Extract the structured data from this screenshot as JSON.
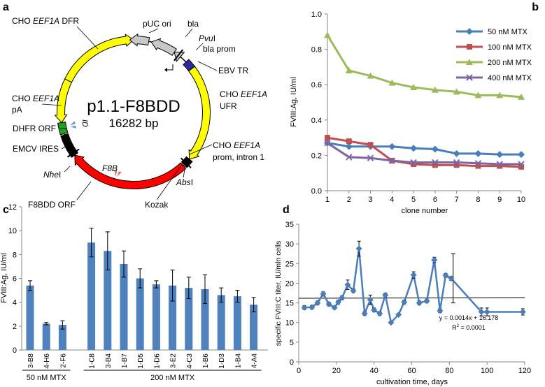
{
  "panels": [
    {
      "letter": "a",
      "chart_data": {
        "type": "plasmid-map",
        "title": "p1.1-F8BDD",
        "size_label": "16282 bp",
        "total_bp": 16282,
        "features": [
          {
            "name": "CHO EEF1A DFR",
            "color": "#ffff00",
            "start_deg": 296,
            "end_deg": 360,
            "direction": "cw"
          },
          {
            "name": "pUC ori",
            "color": "#c8c8c8",
            "start_deg": 357,
            "end_deg": 12,
            "direction": "ccw"
          },
          {
            "name": "bla",
            "color": "#c8c8c8",
            "start_deg": 14,
            "end_deg": 34,
            "direction": "ccw"
          },
          {
            "name": "bla prom",
            "color": "#c8c8c8",
            "start_deg": 34,
            "end_deg": 40,
            "direction": "ccw"
          },
          {
            "name": "EBV TR",
            "color": "#2a2aa0",
            "start_deg": 46,
            "end_deg": 53,
            "direction": "none"
          },
          {
            "name": "CHO EEF1A UFR",
            "color": "#ffff00",
            "start_deg": 53,
            "end_deg": 130,
            "direction": "cw"
          },
          {
            "name": "CHO EEF1A prom, intron 1",
            "color": "#000000",
            "start_deg": 130,
            "end_deg": 136,
            "direction": "none"
          },
          {
            "name": "F8BDD ORF",
            "color": "#ff0000",
            "start_deg": 137,
            "end_deg": 234,
            "direction": "cw"
          },
          {
            "name": "EMCV IRES",
            "color": "#000000",
            "start_deg": 234,
            "end_deg": 252,
            "direction": "none"
          },
          {
            "name": "DHFR ORF",
            "color": "#20a020",
            "start_deg": 253,
            "end_deg": 262,
            "direction": "none"
          },
          {
            "name": "CHO EEF1A pA",
            "color": "#ffff00",
            "start_deg": 262,
            "end_deg": 296,
            "direction": "ccw"
          }
        ],
        "sites": [
          {
            "name": "PvuI",
            "angle_deg": 38
          },
          {
            "name": "AbsI",
            "angle_deg": 134
          },
          {
            "name": "NheI",
            "angle_deg": 236
          }
        ],
        "primers": [
          {
            "name": "F8B",
            "angle_deg": 195
          },
          {
            "name": "ID",
            "angle_deg": 258
          }
        ],
        "labels": {
          "cho_dfr": [
            "CHO ",
            "EEF1A",
            " DFR"
          ],
          "puc_ori": "pUC ori",
          "bla": "bla",
          "pvui": [
            "Pvu",
            "I"
          ],
          "bla_prom": "bla prom",
          "ebv_tr": "EBV TR",
          "cho_ufr_1": [
            "CHO ",
            "EEF1A"
          ],
          "cho_ufr_2": "UFR",
          "cho_prom_1": [
            "CHO ",
            "EEF1A"
          ],
          "cho_prom_2": "prom, intron 1",
          "absi": [
            "Abs",
            "I"
          ],
          "kozak": "Kozak",
          "f8bdd_orf": "F8BDD ORF",
          "nhei": [
            "Nhe",
            "I"
          ],
          "f8b": "F8B",
          "emcv": "EMCV IRES",
          "dhfr": "DHFR ORF",
          "id": "ID",
          "cho_pa_1": [
            "CHO ",
            "EEF1A"
          ],
          "cho_pa_2": "pA"
        }
      }
    },
    {
      "letter": "b",
      "chart_data": {
        "type": "line",
        "xlabel": "clone number",
        "ylabel": "FVIII:Ag, IU/ml",
        "x": [
          1,
          2,
          3,
          4,
          5,
          6,
          7,
          8,
          9,
          10
        ],
        "xlim": [
          1,
          10
        ],
        "ylim": [
          0,
          1.0
        ],
        "yticks": [
          "0.0",
          "0.2",
          "0.4",
          "0.6",
          "0.8",
          "1.0"
        ],
        "series": [
          {
            "name": "50 nM MTX",
            "color": "#4a7ebb",
            "marker": "diamond",
            "values": [
              0.27,
              0.25,
              0.25,
              0.25,
              0.24,
              0.235,
              0.21,
              0.21,
              0.205,
              0.205
            ]
          },
          {
            "name": "100 nM MTX",
            "color": "#c0504d",
            "marker": "square",
            "values": [
              0.3,
              0.28,
              0.26,
              0.17,
              0.15,
              0.145,
              0.145,
              0.14,
              0.14,
              0.135
            ]
          },
          {
            "name": "200 nM MTX",
            "color": "#9bbb59",
            "marker": "triangle",
            "values": [
              0.88,
              0.68,
              0.65,
              0.61,
              0.585,
              0.57,
              0.56,
              0.54,
              0.54,
              0.53
            ]
          },
          {
            "name": "400 nM MTX",
            "color": "#8064a2",
            "marker": "x",
            "values": [
              0.27,
              0.19,
              0.185,
              0.17,
              0.16,
              0.16,
              0.16,
              0.155,
              0.15,
              0.15
            ]
          }
        ]
      }
    },
    {
      "letter": "c",
      "chart_data": {
        "type": "bar",
        "ylabel": "FVIII:Ag, IU/ml",
        "ylim": [
          0,
          12
        ],
        "yticks": [
          "0",
          "2",
          "4",
          "6",
          "8",
          "10",
          "12"
        ],
        "color": "#4f81bd",
        "categories": [
          "3-B8",
          "4-H6",
          "2-F6",
          "1-C8",
          "3-B4",
          "1-B7",
          "1-D5",
          "1-D6",
          "3-E2",
          "4-C3",
          "1-B6",
          "1-D3",
          "1-B4",
          "4-A4"
        ],
        "values": [
          5.4,
          2.2,
          2.1,
          9.0,
          8.3,
          7.2,
          6.0,
          5.5,
          5.4,
          5.2,
          5.1,
          4.6,
          4.5,
          3.8
        ],
        "errors": [
          0.4,
          0.1,
          0.35,
          1.2,
          1.6,
          1.1,
          0.8,
          0.3,
          1.3,
          0.9,
          1.2,
          0.6,
          0.5,
          0.6
        ],
        "groups": [
          {
            "label": "50 nM MTX",
            "from": 0,
            "to": 2
          },
          {
            "label": "200 nM MTX",
            "from": 3,
            "to": 13
          }
        ]
      }
    },
    {
      "letter": "d",
      "chart_data": {
        "type": "scatter",
        "xlabel": "cultivation time, days",
        "ylabel": "specific FVIII:C titer, IU/mln cells",
        "xlim": [
          0,
          120
        ],
        "ylim": [
          0,
          35
        ],
        "xticks": [
          "0",
          "20",
          "40",
          "60",
          "80",
          "100",
          "120"
        ],
        "yticks": [
          "0",
          "5",
          "10",
          "15",
          "20",
          "25",
          "30",
          "35"
        ],
        "color": "#4a7ebb",
        "x": [
          3,
          7,
          10,
          13,
          16,
          19,
          21,
          23,
          26,
          29,
          32,
          35,
          38,
          40,
          43,
          46,
          49,
          53,
          56,
          61,
          64,
          68,
          72,
          75,
          78,
          81,
          97,
          100,
          119
        ],
        "y": [
          13.8,
          13.9,
          15.0,
          17.3,
          14.7,
          13.8,
          15.2,
          16.3,
          19.6,
          18.1,
          28.8,
          12.3,
          15.8,
          13.2,
          12.3,
          17.0,
          10.0,
          12.0,
          15.2,
          22.1,
          15.0,
          15.5,
          25.9,
          13.0,
          22.0,
          21.2,
          12.7,
          12.7,
          12.7
        ],
        "errors": [
          0.5,
          0.5,
          0.5,
          0.5,
          0.5,
          0.4,
          0.5,
          0.5,
          1.2,
          0.5,
          1.9,
          0.5,
          1.2,
          0.5,
          0.5,
          0.5,
          0.3,
          0.3,
          0.5,
          0.8,
          0.5,
          0.5,
          0.7,
          0.5,
          0.5,
          0.5,
          1.0,
          1.0,
          0.8
        ],
        "big_error": {
          "x": 82,
          "low": 15.0,
          "high": 27.5
        },
        "trendline": {
          "slope": 0.0014,
          "intercept": 16.178
        },
        "equation": "y = 0.0014x + 16.178",
        "r2_prefix": "R",
        "r2_sup": "2",
        "r2_suffix": " = 0.0001"
      }
    }
  ]
}
